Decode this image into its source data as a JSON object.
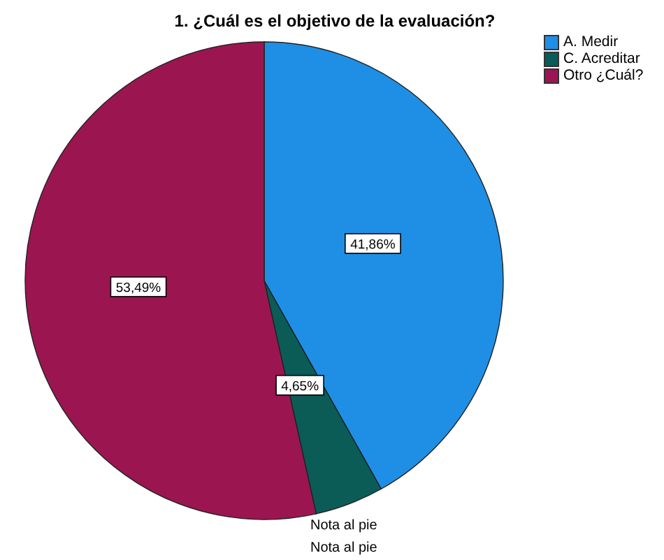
{
  "chart_data": {
    "type": "pie",
    "title": "1. ¿Cuál es el objetivo de la evaluación?",
    "categories": [
      "A. Medir",
      "C. Acreditar",
      "Otro ¿Cuál?"
    ],
    "values": [
      41.86,
      4.65,
      53.49
    ],
    "value_labels": [
      "41,86%",
      "4,65%",
      "53,49%"
    ],
    "colors": [
      "#1f8fe5",
      "#0b5b57",
      "#9b1650"
    ],
    "legend": "top right",
    "annotations": [
      "Nota al pie",
      "Nota al pie"
    ]
  }
}
